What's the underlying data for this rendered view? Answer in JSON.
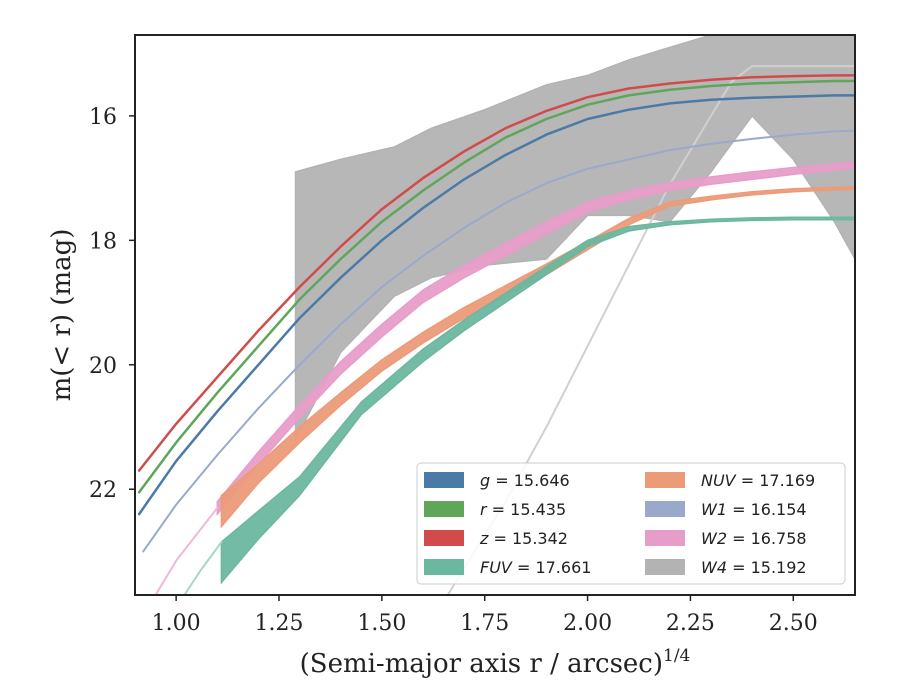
{
  "chart_data": {
    "type": "line",
    "xlabel": "(Semi-major axis r / arcsec)",
    "xlabel_sup": "1/4",
    "ylabel": "m(< r) (mag)",
    "xlim": [
      0.9,
      2.65
    ],
    "ylim": [
      23.7,
      14.7
    ],
    "y_inverted": true,
    "x_ticks": [
      1.0,
      1.25,
      1.5,
      1.75,
      2.0,
      2.25,
      2.5
    ],
    "x_tick_labels": [
      "1.00",
      "1.25",
      "1.50",
      "1.75",
      "2.00",
      "2.25",
      "2.50"
    ],
    "y_ticks": [
      16,
      18,
      20,
      22
    ],
    "y_tick_labels": [
      "16",
      "18",
      "20",
      "22"
    ],
    "grid": false,
    "legend_position": "lower-right",
    "legend": [
      {
        "label": "g = 15.646",
        "color": "#4c7aa6"
      },
      {
        "label": "r = 15.435",
        "color": "#5fa55a"
      },
      {
        "label": "z = 15.342",
        "color": "#d24b4b"
      },
      {
        "label": "FUV = 17.661",
        "color": "#6cb7a0"
      },
      {
        "label": "NUV = 17.169",
        "color": "#ec9b78"
      },
      {
        "label": "W1 = 16.154",
        "color": "#9aa8cc"
      },
      {
        "label": "W2 = 16.758",
        "color": "#e79dc9"
      },
      {
        "label": "W4 = 15.192",
        "color": "#b3b3b3"
      }
    ],
    "series": [
      {
        "key": "w4",
        "kind": "band",
        "color": "#b3b3b3",
        "x": [
          1.29,
          1.4,
          1.53,
          1.62,
          1.75,
          1.9,
          2.0,
          2.1,
          2.2,
          2.3,
          2.4,
          2.5,
          2.6,
          2.65
        ],
        "y_low": [
          21.2,
          19.8,
          18.9,
          18.6,
          18.4,
          18.3,
          17.6,
          17.6,
          17.7,
          16.9,
          16.0,
          16.7,
          17.7,
          18.3
        ],
        "y_high": [
          16.9,
          16.7,
          16.5,
          16.2,
          15.9,
          15.5,
          15.35,
          15.1,
          14.9,
          14.7,
          14.7,
          14.7,
          14.7,
          14.7
        ]
      },
      {
        "key": "w4_line",
        "kind": "line",
        "color": "#d0d0d0",
        "width": 2,
        "x": [
          1.66,
          1.8,
          1.9,
          2.0,
          2.1,
          2.2,
          2.3,
          2.35,
          2.4,
          2.5,
          2.65
        ],
        "y": [
          23.7,
          22.2,
          21.0,
          19.7,
          18.4,
          17.1,
          16.0,
          15.45,
          15.2,
          15.2,
          15.2
        ]
      },
      {
        "key": "r",
        "kind": "line",
        "color": "#5fa55a",
        "width": 2.5,
        "x": [
          0.91,
          1.0,
          1.1,
          1.2,
          1.3,
          1.4,
          1.5,
          1.6,
          1.7,
          1.8,
          1.9,
          2.0,
          2.1,
          2.2,
          2.3,
          2.4,
          2.5,
          2.6,
          2.65
        ],
        "y": [
          22.05,
          21.25,
          20.45,
          19.7,
          18.95,
          18.3,
          17.7,
          17.2,
          16.75,
          16.35,
          16.05,
          15.82,
          15.67,
          15.58,
          15.52,
          15.48,
          15.46,
          15.44,
          15.44
        ]
      },
      {
        "key": "z",
        "kind": "line",
        "color": "#d24b4b",
        "width": 2.5,
        "x": [
          0.91,
          1.0,
          1.1,
          1.2,
          1.3,
          1.4,
          1.5,
          1.6,
          1.7,
          1.8,
          1.9,
          2.0,
          2.1,
          2.2,
          2.3,
          2.4,
          2.5,
          2.6,
          2.65
        ],
        "y": [
          21.7,
          20.95,
          20.2,
          19.45,
          18.75,
          18.1,
          17.5,
          17.0,
          16.57,
          16.2,
          15.92,
          15.7,
          15.56,
          15.48,
          15.42,
          15.38,
          15.36,
          15.35,
          15.35
        ]
      },
      {
        "key": "g",
        "kind": "line",
        "color": "#4c7aa6",
        "width": 2.5,
        "x": [
          0.91,
          1.0,
          1.1,
          1.2,
          1.3,
          1.4,
          1.5,
          1.6,
          1.7,
          1.8,
          1.9,
          2.0,
          2.1,
          2.2,
          2.3,
          2.4,
          2.5,
          2.6,
          2.65
        ],
        "y": [
          22.4,
          21.55,
          20.75,
          20.0,
          19.25,
          18.6,
          18.0,
          17.48,
          17.02,
          16.63,
          16.3,
          16.05,
          15.9,
          15.8,
          15.74,
          15.71,
          15.69,
          15.67,
          15.67
        ]
      },
      {
        "key": "w1",
        "kind": "line",
        "color": "#9aa8cc",
        "width": 2,
        "x": [
          0.92,
          1.0,
          1.1,
          1.2,
          1.3,
          1.4,
          1.5,
          1.6,
          1.7,
          1.8,
          1.9,
          2.0,
          2.1,
          2.2,
          2.3,
          2.4,
          2.5,
          2.6,
          2.65
        ],
        "y": [
          23.0,
          22.25,
          21.45,
          20.7,
          20.0,
          19.35,
          18.75,
          18.25,
          17.8,
          17.4,
          17.08,
          16.85,
          16.7,
          16.55,
          16.45,
          16.37,
          16.3,
          16.25,
          16.24
        ]
      },
      {
        "key": "w2",
        "kind": "band",
        "color": "#e79dc9",
        "x": [
          1.1,
          1.2,
          1.3,
          1.4,
          1.5,
          1.6,
          1.7,
          1.8,
          1.9,
          2.0,
          2.1,
          2.2,
          2.3,
          2.4,
          2.5,
          2.6,
          2.65
        ],
        "y_low": [
          22.4,
          21.6,
          20.85,
          20.15,
          19.55,
          19.0,
          18.6,
          18.25,
          17.9,
          17.55,
          17.35,
          17.2,
          17.1,
          17.02,
          16.94,
          16.87,
          16.84
        ],
        "y_high": [
          22.2,
          21.4,
          20.65,
          19.95,
          19.35,
          18.8,
          18.4,
          18.05,
          17.7,
          17.38,
          17.2,
          17.07,
          16.98,
          16.9,
          16.83,
          16.77,
          16.74
        ]
      },
      {
        "key": "w2_ext",
        "kind": "line",
        "color": "#f2b8d7",
        "width": 2,
        "x": [
          0.95,
          1.0,
          1.1
        ],
        "y": [
          23.7,
          23.15,
          22.3
        ]
      },
      {
        "key": "nuv",
        "kind": "band",
        "color": "#ec9b78",
        "x": [
          1.11,
          1.2,
          1.3,
          1.4,
          1.5,
          1.6,
          1.7,
          1.8,
          1.9,
          2.0,
          2.1,
          2.2,
          2.3,
          2.4,
          2.5,
          2.6,
          2.65
        ],
        "y_low": [
          22.6,
          21.9,
          21.25,
          20.65,
          20.1,
          19.65,
          19.25,
          18.9,
          18.55,
          18.15,
          17.75,
          17.45,
          17.35,
          17.27,
          17.22,
          17.19,
          17.18
        ],
        "y_high": [
          22.1,
          21.6,
          21.0,
          20.45,
          19.92,
          19.48,
          19.08,
          18.73,
          18.38,
          18.02,
          17.65,
          17.38,
          17.29,
          17.22,
          17.17,
          17.15,
          17.14
        ]
      },
      {
        "key": "fuv",
        "kind": "band",
        "color": "#6cb7a0",
        "x": [
          1.11,
          1.2,
          1.3,
          1.45,
          1.6,
          1.7,
          1.8,
          1.9,
          2.0,
          2.1,
          2.2,
          2.3,
          2.4,
          2.5,
          2.6,
          2.65
        ],
        "y_low": [
          23.5,
          22.8,
          22.1,
          20.8,
          19.95,
          19.45,
          19.0,
          18.55,
          18.1,
          17.85,
          17.75,
          17.7,
          17.68,
          17.67,
          17.67,
          17.67
        ],
        "y_high": [
          22.85,
          22.35,
          21.8,
          20.6,
          19.75,
          19.28,
          18.85,
          18.42,
          18.0,
          17.78,
          17.7,
          17.66,
          17.64,
          17.63,
          17.63,
          17.63
        ]
      },
      {
        "key": "fuv_ext",
        "kind": "line",
        "color": "#a8d7c8",
        "width": 2,
        "x": [
          1.02,
          1.06,
          1.11
        ],
        "y": [
          23.7,
          23.3,
          22.85
        ]
      }
    ]
  }
}
